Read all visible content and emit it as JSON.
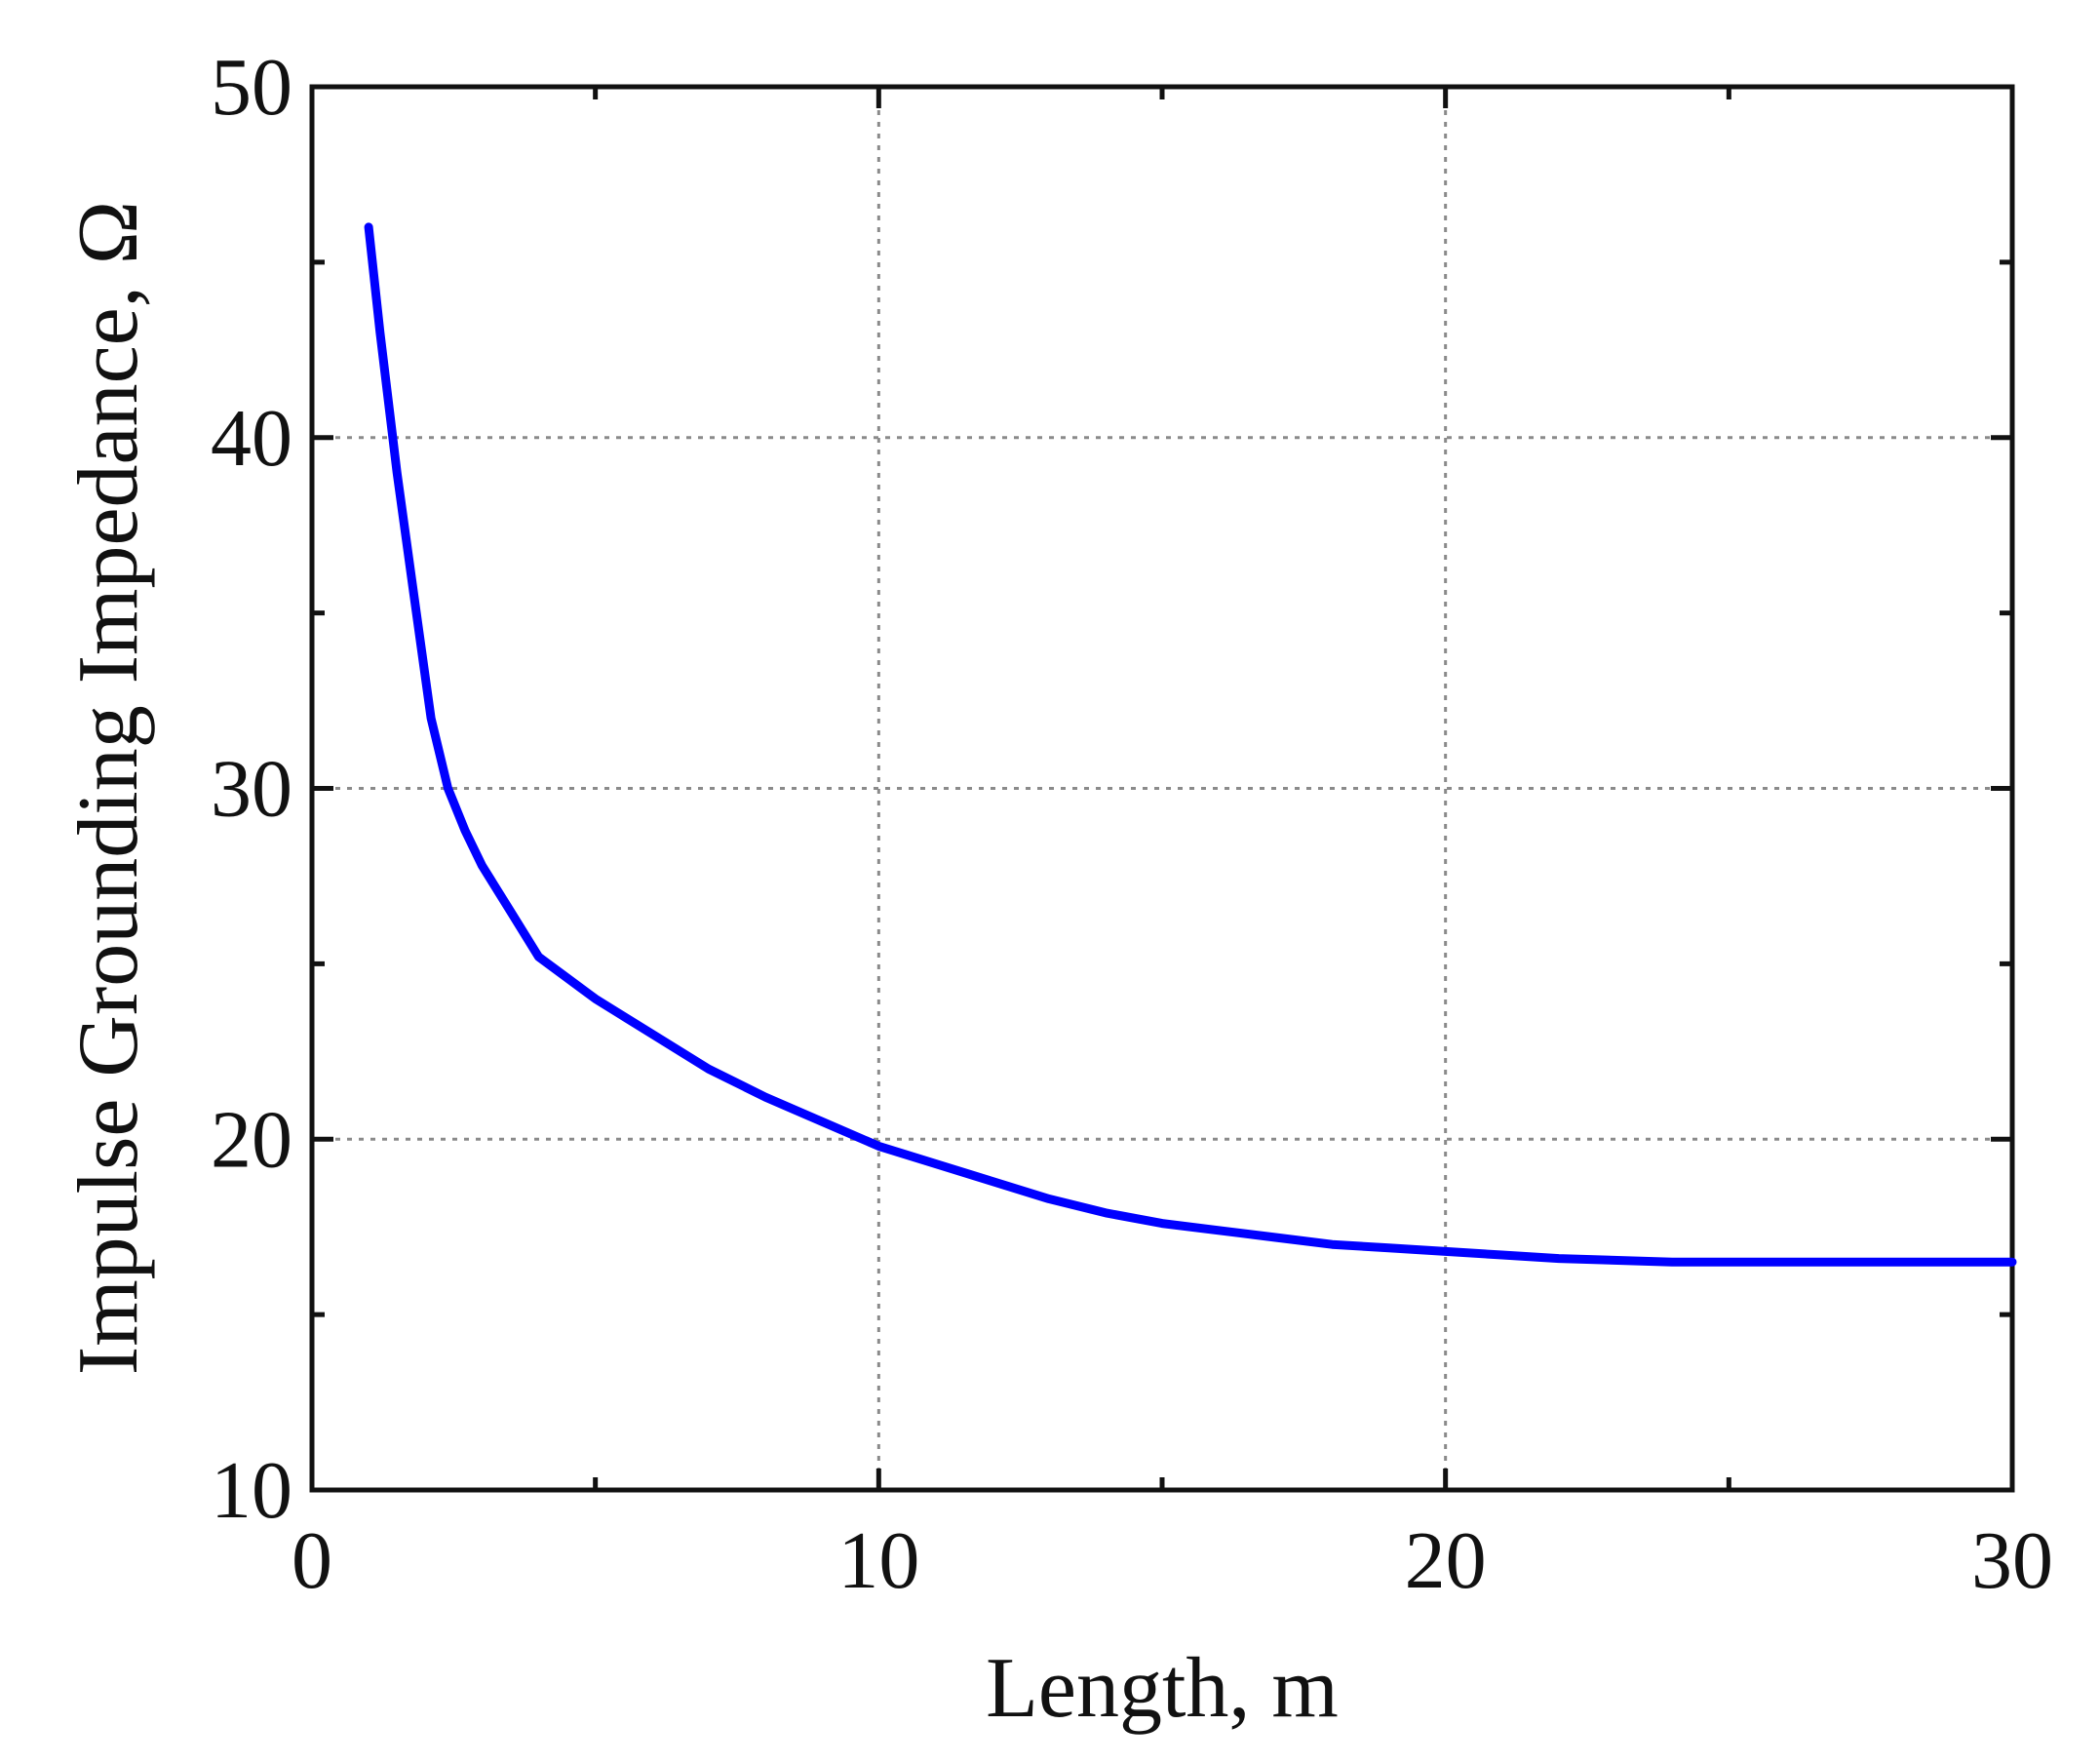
{
  "chart_data": {
    "type": "line",
    "xlabel": "Length, m",
    "ylabel": "Impulse Grounding Impedance, Ω",
    "xlim": [
      0,
      30
    ],
    "ylim": [
      10,
      50
    ],
    "x_ticks": [
      0,
      10,
      20,
      30
    ],
    "y_ticks": [
      10,
      20,
      30,
      40,
      50
    ],
    "x_tick_labels": [
      "0",
      "10",
      "20",
      "30"
    ],
    "y_tick_labels": [
      "10",
      "20",
      "30",
      "40",
      "50"
    ],
    "grid": true,
    "legend": "none",
    "series": [
      {
        "color": "#0000ff",
        "x": [
          1.0,
          1.2,
          1.5,
          1.8,
          2.1,
          2.4,
          2.7,
          3.0,
          3.5,
          4.0,
          4.5,
          5.0,
          5.5,
          6.0,
          7.0,
          8.0,
          9.0,
          10.0,
          11.0,
          12.0,
          13.0,
          14.0,
          15.0,
          16.0,
          17.0,
          18.0,
          19.0,
          20.0,
          21.0,
          22.0,
          24.0,
          26.0,
          28.0,
          30.0
        ],
        "y": [
          46.0,
          43.0,
          39.0,
          35.5,
          32.0,
          30.0,
          28.8,
          27.8,
          26.5,
          25.2,
          24.6,
          24.0,
          23.5,
          23.0,
          22.0,
          21.2,
          20.5,
          19.8,
          19.3,
          18.8,
          18.3,
          17.9,
          17.6,
          17.4,
          17.2,
          17.0,
          16.9,
          16.8,
          16.7,
          16.6,
          16.5,
          16.5,
          16.5,
          16.5
        ]
      }
    ]
  }
}
